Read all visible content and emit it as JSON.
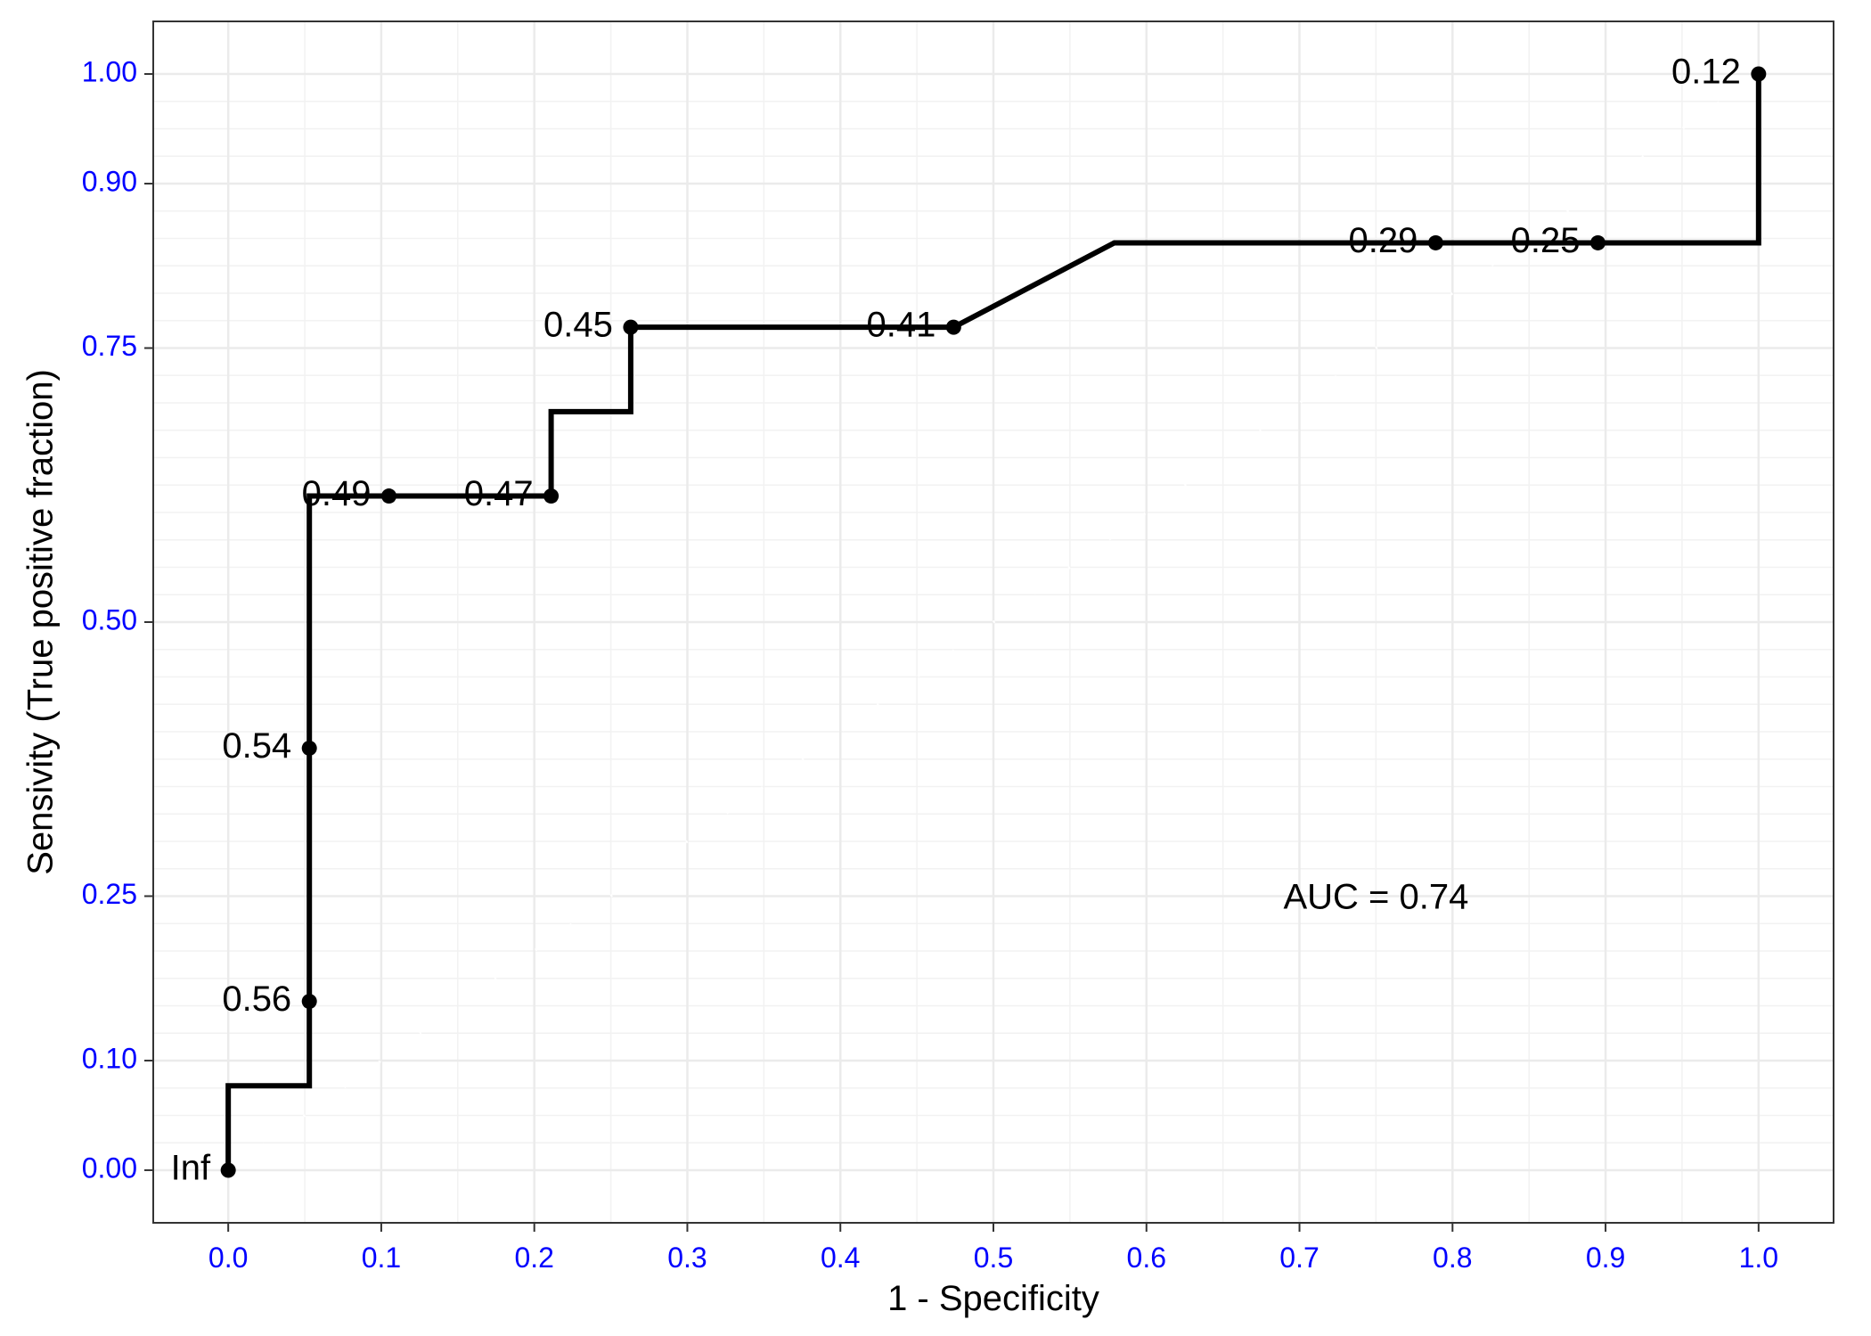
{
  "chart_data": {
    "type": "line",
    "xlabel": "1 - Specificity",
    "ylabel": "Sensivity (True positive fraction)",
    "xlim": [
      -0.049,
      1.049
    ],
    "ylim": [
      -0.048,
      1.048
    ],
    "x_ticks": [
      0.0,
      0.1,
      0.2,
      0.3,
      0.4,
      0.5,
      0.6,
      0.7,
      0.8,
      0.9,
      1.0
    ],
    "x_tick_labels": [
      "0.0",
      "0.1",
      "0.2",
      "0.3",
      "0.4",
      "0.5",
      "0.6",
      "0.7",
      "0.8",
      "0.9",
      "1.0"
    ],
    "y_ticks": [
      0.0,
      0.1,
      0.25,
      0.5,
      0.75,
      0.9,
      1.0
    ],
    "y_tick_labels": [
      "0.00",
      "0.10",
      "0.25",
      "0.50",
      "0.75",
      "0.90",
      "1.00"
    ],
    "grid": true,
    "tick_label_color": "#0000ff",
    "line_color": "#000000",
    "annotation": "AUC = 0.74",
    "annotation_position": [
      0.75,
      0.247
    ],
    "roc_curve": {
      "x": [
        0.0,
        0.0,
        0.053,
        0.053,
        0.053,
        0.053,
        0.105,
        0.211,
        0.211,
        0.263,
        0.263,
        0.474,
        0.579,
        0.789,
        0.895,
        1.0,
        1.0
      ],
      "y": [
        0.0,
        0.077,
        0.077,
        0.154,
        0.385,
        0.615,
        0.615,
        0.615,
        0.692,
        0.692,
        0.769,
        0.769,
        0.846,
        0.846,
        0.846,
        0.846,
        1.0
      ]
    },
    "threshold_points": [
      {
        "label": "Inf",
        "x": 0.0,
        "y": 0.0
      },
      {
        "label": "0.56",
        "x": 0.053,
        "y": 0.154
      },
      {
        "label": "0.54",
        "x": 0.053,
        "y": 0.385
      },
      {
        "label": "0.49",
        "x": 0.105,
        "y": 0.615
      },
      {
        "label": "0.47",
        "x": 0.211,
        "y": 0.615
      },
      {
        "label": "0.45",
        "x": 0.263,
        "y": 0.769
      },
      {
        "label": "0.41",
        "x": 0.474,
        "y": 0.769
      },
      {
        "label": "0.29",
        "x": 0.789,
        "y": 0.846
      },
      {
        "label": "0.25",
        "x": 0.895,
        "y": 0.846
      },
      {
        "label": "0.12",
        "x": 1.0,
        "y": 1.0
      }
    ]
  }
}
